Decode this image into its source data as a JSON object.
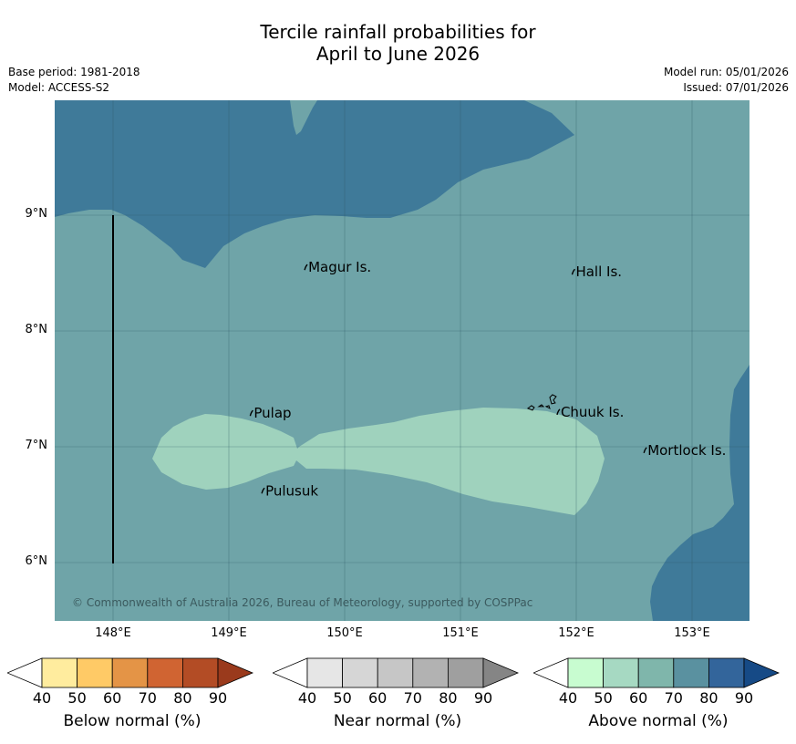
{
  "title": {
    "line1": "Tercile rainfall probabilities for",
    "line2": "April to June 2026"
  },
  "meta": {
    "base_period": "Base period: 1981-2018",
    "model": "Model: ACCESS-S2",
    "model_run": "Model run: 05/01/2026",
    "issued": "Issued: 07/01/2026"
  },
  "map": {
    "copyright": "© Commonwealth of Australia 2026, Bureau of Meteorology, supported by COSPPac",
    "lat_ticks": [
      {
        "value": 9,
        "label": "9°N"
      },
      {
        "value": 8,
        "label": "8°N"
      },
      {
        "value": 7,
        "label": "7°N"
      },
      {
        "value": 6,
        "label": "6°N"
      }
    ],
    "lon_ticks": [
      {
        "value": 148,
        "label": "148°E"
      },
      {
        "value": 149,
        "label": "149°E"
      },
      {
        "value": 150,
        "label": "150°E"
      },
      {
        "value": 151,
        "label": "151°E"
      },
      {
        "value": 152,
        "label": "152°E"
      },
      {
        "value": 153,
        "label": "153°E"
      }
    ],
    "places": [
      {
        "name": "Magur Is.",
        "lon": 149.67,
        "lat": 8.55
      },
      {
        "name": "Hall Is.",
        "lon": 151.98,
        "lat": 8.51
      },
      {
        "name": "Pulap",
        "lon": 149.2,
        "lat": 7.29
      },
      {
        "name": "Chuuk Is.",
        "lon": 151.85,
        "lat": 7.3
      },
      {
        "name": "Mortlock Is.",
        "lon": 152.6,
        "lat": 6.97
      },
      {
        "name": "Pulusuk",
        "lon": 149.3,
        "lat": 6.62
      }
    ],
    "colors": {
      "above_80": "#3f7a99",
      "above_70": "#6fa4a8",
      "above_60": "#9fd2bd",
      "grid": "#2e5a66",
      "meridian_line": "#000000"
    }
  },
  "colorbars": [
    {
      "label": "Below normal (%)",
      "ticks": [
        "40",
        "50",
        "60",
        "70",
        "80",
        "90"
      ],
      "colors": [
        "#ffffff",
        "#ffec9e",
        "#ffca66",
        "#e49446",
        "#d06432",
        "#b34c25",
        "#9a3a1c"
      ]
    },
    {
      "label": "Near normal (%)",
      "ticks": [
        "40",
        "50",
        "60",
        "70",
        "80",
        "90"
      ],
      "colors": [
        "#ffffff",
        "#e6e6e6",
        "#d6d6d6",
        "#c6c6c6",
        "#b2b2b2",
        "#9f9f9f",
        "#858585"
      ]
    },
    {
      "label": "Above normal (%)",
      "ticks": [
        "40",
        "50",
        "60",
        "70",
        "80",
        "90"
      ],
      "colors": [
        "#ffffff",
        "#c8fcd0",
        "#a6d9c2",
        "#7fb6ab",
        "#5a91a0",
        "#33659b",
        "#164a86"
      ]
    }
  ]
}
